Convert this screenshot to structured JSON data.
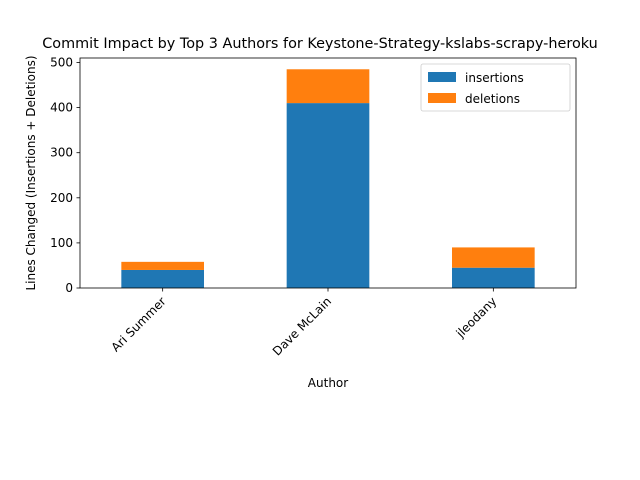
{
  "chart_data": {
    "type": "bar",
    "stacked": true,
    "title": "Commit Impact by Top 3 Authors for Keystone-Strategy-kslabs-scrapy-heroku",
    "xlabel": "Author",
    "ylabel": "Lines Changed (Insertions + Deletions)",
    "categories": [
      "Ari Summer",
      "Dave McLain",
      "jleodany"
    ],
    "series": [
      {
        "name": "insertions",
        "color": "#1f77b4",
        "values": [
          40,
          410,
          45
        ]
      },
      {
        "name": "deletions",
        "color": "#ff7f0e",
        "values": [
          18,
          75,
          45
        ]
      }
    ],
    "ylim": [
      0,
      510
    ],
    "yticks": [
      0,
      100,
      200,
      300,
      400,
      500
    ],
    "grid": false,
    "legend_position": "upper right"
  }
}
